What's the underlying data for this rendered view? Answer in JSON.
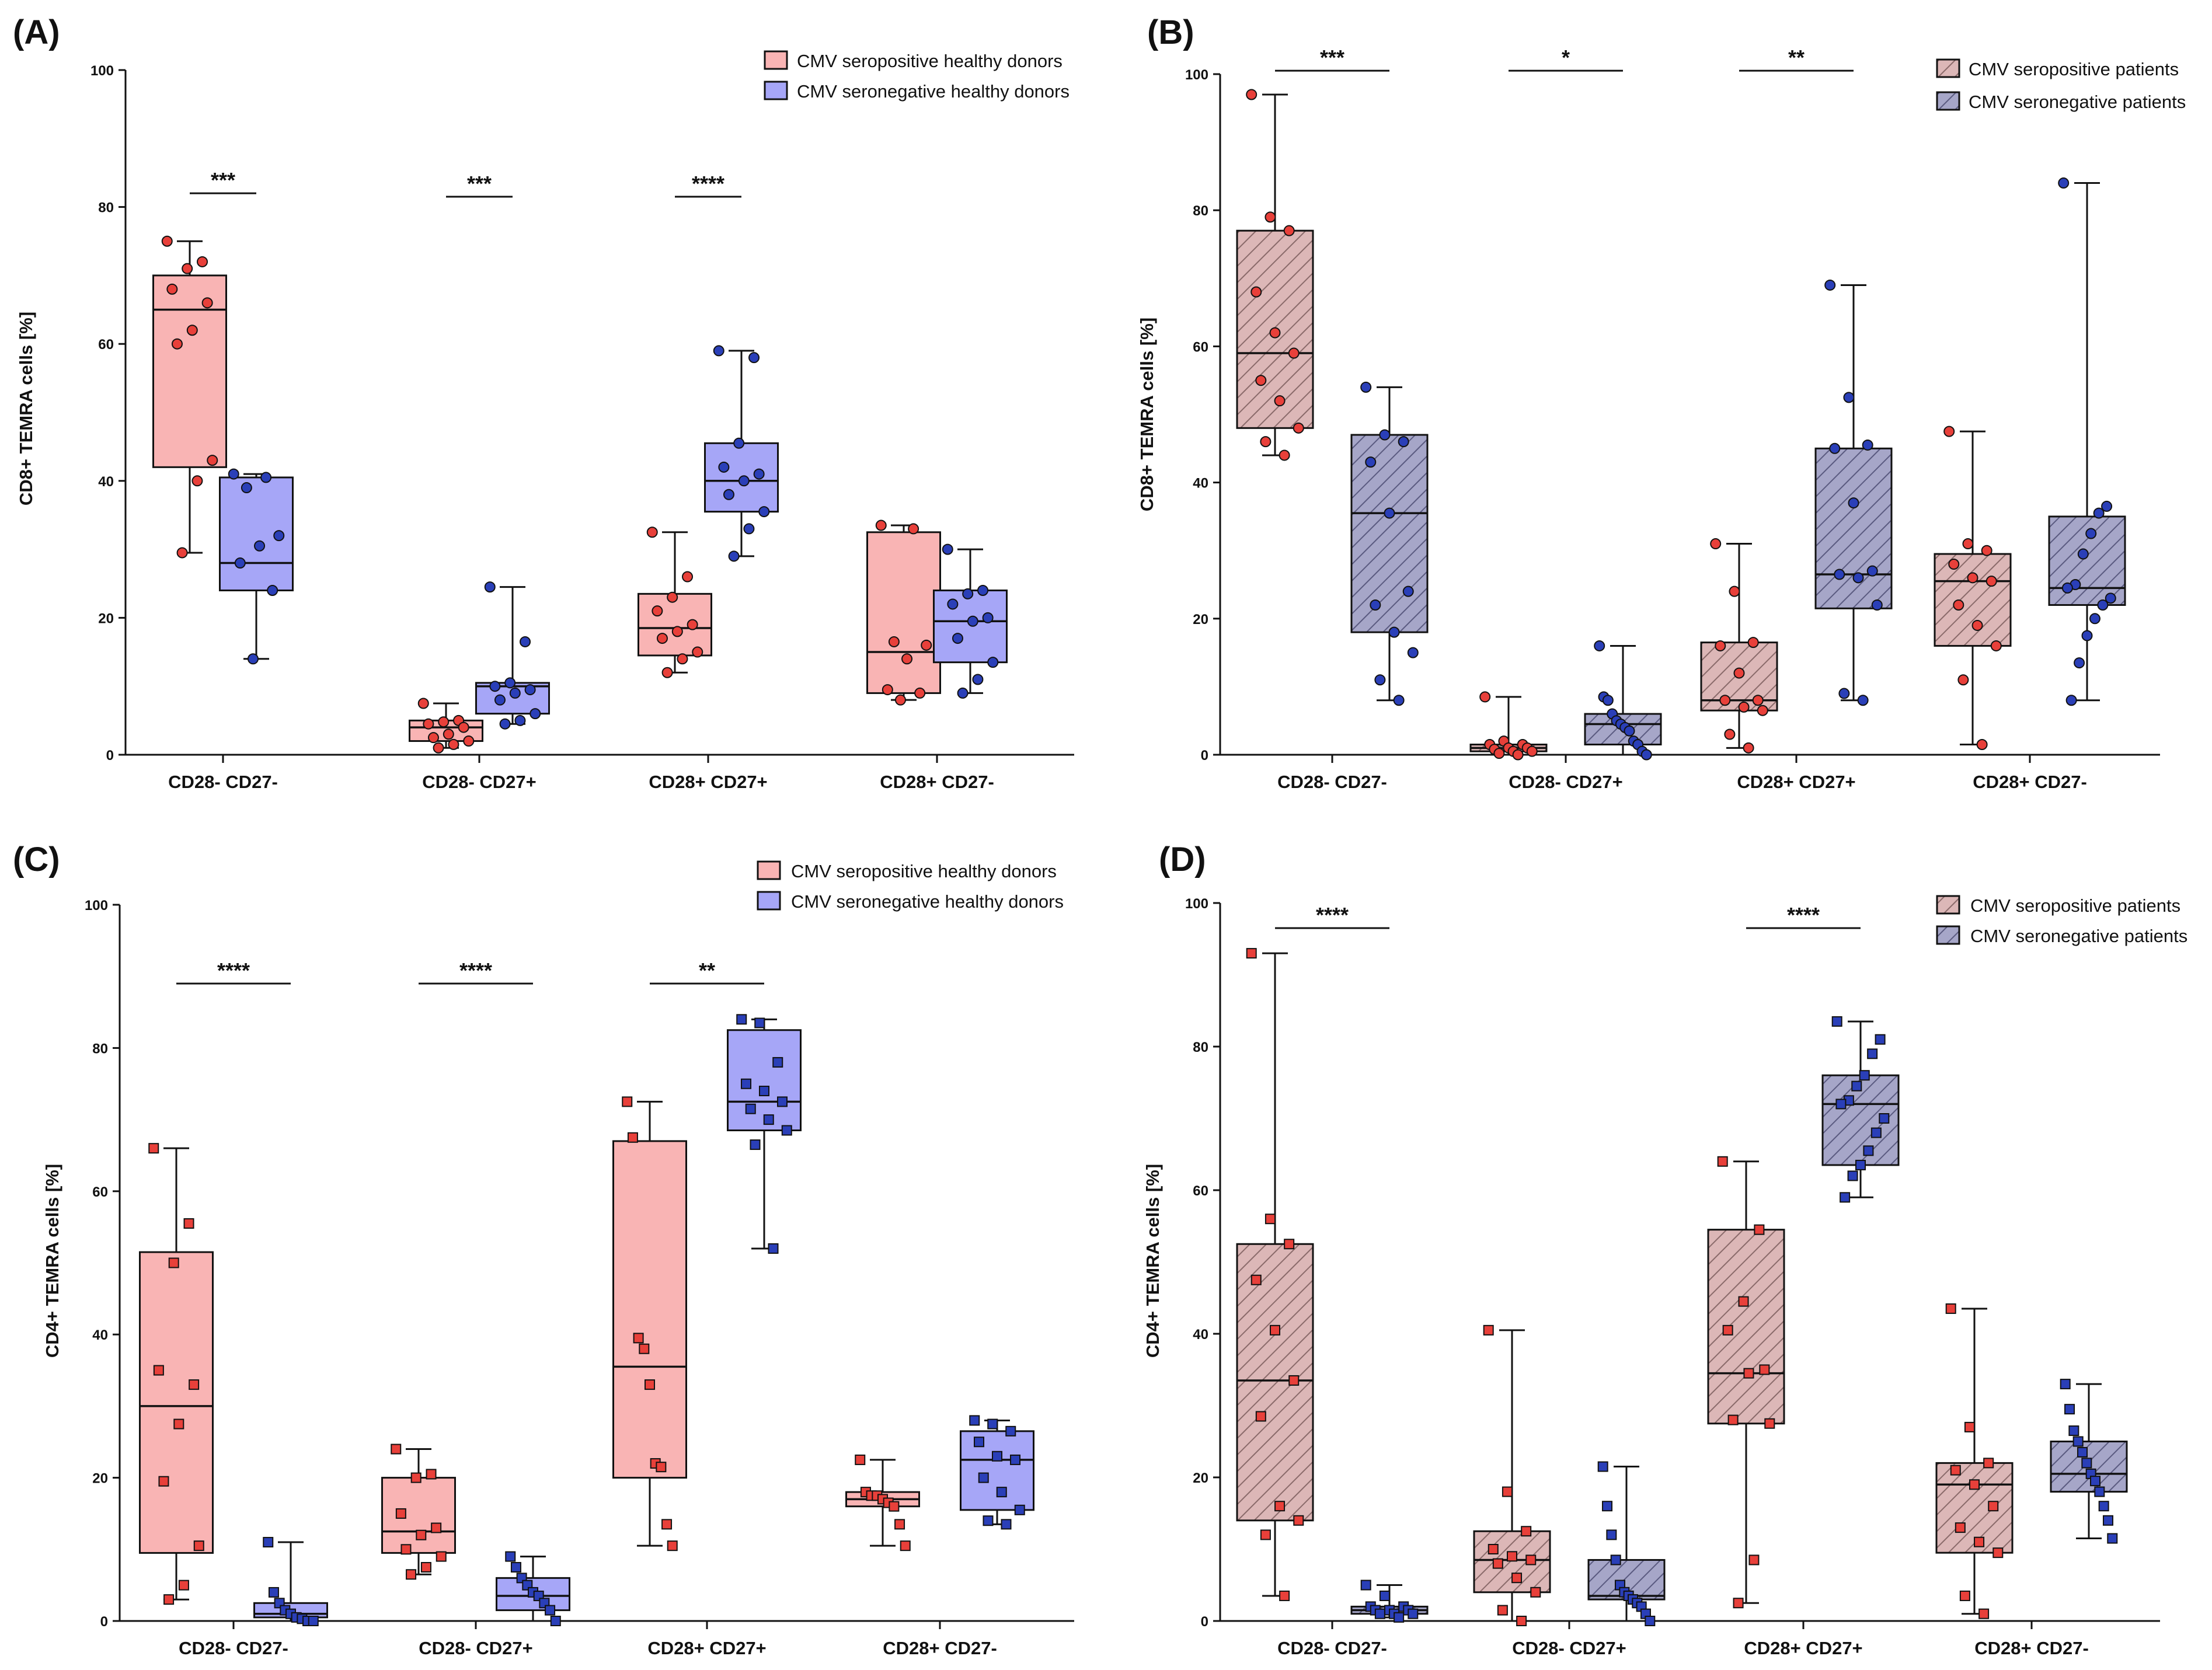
{
  "figure": {
    "colors": {
      "pos_fill": "#f9b4b4",
      "neg_fill": "#a6a6f7",
      "pos_pat_fill": "#dcb7b7",
      "neg_pat_fill": "#a6a6c8",
      "pos_point": "#e8403a",
      "neg_point": "#2a3fb8",
      "line": "#111111"
    }
  },
  "chart_data": [
    {
      "id": "A",
      "type": "box",
      "panel_label": "(A)",
      "ylabel": "CD8+ TEMRA cells [%]",
      "ylim": [
        0,
        100
      ],
      "yticks": [
        "0",
        "20",
        "40",
        "60",
        "80",
        "100"
      ],
      "categories": [
        "CD28- CD27-",
        "CD28- CD27+",
        "CD28+ CD27+",
        "CD28+ CD27-"
      ],
      "marker": "circle",
      "hatched": false,
      "series": [
        {
          "name": "CMV seropositive healthy donors",
          "color_key": "pos",
          "boxes": [
            {
              "min": 29.5,
              "q1": 42,
              "median": 65,
              "q3": 70,
              "max": 75,
              "points": [
                75,
                72,
                71,
                68,
                66,
                62,
                60,
                43,
                40,
                29.5
              ]
            },
            {
              "min": 1,
              "q1": 2,
              "median": 4,
              "q3": 5,
              "max": 7.5,
              "points": [
                7.5,
                5,
                4.8,
                4.5,
                4,
                3,
                2.5,
                2,
                1.5,
                1
              ]
            },
            {
              "min": 12,
              "q1": 14.5,
              "median": 18.5,
              "q3": 23.5,
              "max": 32.5,
              "points": [
                32.5,
                26,
                23,
                21,
                19,
                18,
                17,
                15,
                14,
                12
              ]
            },
            {
              "min": 8,
              "q1": 9,
              "median": 15,
              "q3": 32.5,
              "max": 33.5,
              "points": [
                33.5,
                33,
                16.5,
                16,
                14,
                9.5,
                9,
                8
              ]
            }
          ]
        },
        {
          "name": "CMV seronegative healthy donors",
          "color_key": "neg",
          "boxes": [
            {
              "min": 14,
              "q1": 24,
              "median": 28,
              "q3": 40.5,
              "max": 41,
              "points": [
                41,
                40.5,
                39,
                32,
                30.5,
                28,
                24,
                14
              ]
            },
            {
              "min": 4.5,
              "q1": 6,
              "median": 10,
              "q3": 10.5,
              "max": 24.5,
              "points": [
                24.5,
                16.5,
                10.5,
                10,
                9.5,
                9,
                8,
                6,
                5,
                4.5
              ]
            },
            {
              "min": 29,
              "q1": 35.5,
              "median": 40,
              "q3": 45.5,
              "max": 59,
              "points": [
                59,
                58,
                45.5,
                42,
                41,
                40,
                38,
                35.5,
                33,
                29
              ]
            },
            {
              "min": 9,
              "q1": 13.5,
              "median": 19.5,
              "q3": 24,
              "max": 30,
              "points": [
                30,
                24,
                23.5,
                22,
                20,
                19.5,
                17,
                13.5,
                11,
                9
              ]
            }
          ]
        }
      ],
      "significance": [
        {
          "category": 0,
          "label": "***",
          "y": 82
        },
        {
          "category": 1,
          "label": "***",
          "y": 81.5
        },
        {
          "category": 2,
          "label": "****",
          "y": 81.5
        }
      ],
      "legend": [
        "CMV seropositive healthy donors",
        "CMV seronegative healthy donors"
      ],
      "legend_position": "top-right"
    },
    {
      "id": "B",
      "type": "box",
      "panel_label": "(B)",
      "ylabel": "CD8+ TEMRA cells [%]",
      "ylim": [
        0,
        100
      ],
      "yticks": [
        "0",
        "20",
        "40",
        "60",
        "80",
        "100"
      ],
      "categories": [
        "CD28- CD27-",
        "CD28- CD27+",
        "CD28+ CD27+",
        "CD28+ CD27-"
      ],
      "marker": "circle",
      "hatched": true,
      "series": [
        {
          "name": "CMV seropositive patients",
          "color_key": "pos_pat",
          "boxes": [
            {
              "min": 44,
              "q1": 48,
              "median": 59,
              "q3": 77,
              "max": 97,
              "points": [
                97,
                79,
                77,
                68,
                62,
                59,
                55,
                52,
                48,
                46,
                44
              ]
            },
            {
              "min": 0,
              "q1": 0.5,
              "median": 1,
              "q3": 1.5,
              "max": 8.5,
              "points": [
                8.5,
                2,
                1.5,
                1.5,
                1,
                1,
                0.8,
                0.5,
                0.5,
                0.2,
                0
              ]
            },
            {
              "min": 1,
              "q1": 6.5,
              "median": 8,
              "q3": 16.5,
              "max": 31,
              "points": [
                31,
                24,
                16.5,
                16,
                12,
                8,
                8,
                7,
                6.5,
                3,
                1
              ]
            },
            {
              "min": 1.5,
              "q1": 16,
              "median": 25.5,
              "q3": 29.5,
              "max": 47.5,
              "points": [
                47.5,
                31,
                30,
                28,
                26,
                25.5,
                22,
                19,
                16,
                11,
                1.5
              ]
            }
          ]
        },
        {
          "name": "CMV seronegative patients",
          "color_key": "neg_pat",
          "boxes": [
            {
              "min": 8,
              "q1": 18,
              "median": 35.5,
              "q3": 47,
              "max": 54,
              "points": [
                54,
                47,
                46,
                43,
                35.5,
                24,
                22,
                18,
                15,
                11,
                8
              ]
            },
            {
              "min": 0,
              "q1": 1.5,
              "median": 4.5,
              "q3": 6,
              "max": 16,
              "points": [
                16,
                8.5,
                8,
                6,
                5,
                4.5,
                4,
                3.5,
                2,
                1.5,
                0.5,
                0
              ]
            },
            {
              "min": 8,
              "q1": 21.5,
              "median": 26.5,
              "q3": 45,
              "max": 69,
              "points": [
                69,
                52.5,
                45.5,
                45,
                37,
                27,
                26.5,
                26,
                22,
                9,
                8
              ]
            },
            {
              "min": 8,
              "q1": 22,
              "median": 24.5,
              "q3": 35,
              "max": 84,
              "points": [
                84,
                36.5,
                35.5,
                32.5,
                29.5,
                25,
                24.5,
                23,
                22,
                20,
                17.5,
                13.5,
                8
              ]
            }
          ]
        }
      ],
      "significance": [
        {
          "category": 0,
          "label": "***",
          "y": 100.5
        },
        {
          "category": 1,
          "label": "*",
          "y": 100.5
        },
        {
          "category": 2,
          "label": "**",
          "y": 100.5
        }
      ],
      "legend": [
        "CMV seropositive patients",
        "CMV seronegative patients"
      ],
      "legend_position": "top-right"
    },
    {
      "id": "C",
      "type": "box",
      "panel_label": "(C)",
      "ylabel": "CD4+ TEMRA cells [%]",
      "ylim": [
        0,
        100
      ],
      "yticks": [
        "0",
        "20",
        "40",
        "60",
        "80",
        "100"
      ],
      "categories": [
        "CD28- CD27-",
        "CD28- CD27+",
        "CD28+ CD27+",
        "CD28+ CD27-"
      ],
      "marker": "square",
      "hatched": false,
      "series": [
        {
          "name": "CMV seropositive healthy donors",
          "color_key": "pos",
          "boxes": [
            {
              "min": 3,
              "q1": 9.5,
              "median": 30,
              "q3": 51.5,
              "max": 66,
              "points": [
                66,
                55.5,
                50,
                35,
                33,
                27.5,
                19.5,
                10.5,
                5,
                3
              ]
            },
            {
              "min": 6.5,
              "q1": 9.5,
              "median": 12.5,
              "q3": 20,
              "max": 24,
              "points": [
                24,
                20.5,
                20,
                15,
                13,
                12,
                10,
                9,
                7.5,
                6.5
              ]
            },
            {
              "min": 10.5,
              "q1": 20,
              "median": 35.5,
              "q3": 67,
              "max": 72.5,
              "points": [
                72.5,
                67.5,
                39.5,
                38,
                33,
                22,
                21.5,
                13.5,
                10.5
              ]
            },
            {
              "min": 10.5,
              "q1": 16,
              "median": 17,
              "q3": 18,
              "max": 22.5,
              "points": [
                22.5,
                18,
                17.5,
                17.5,
                17,
                16.5,
                16,
                13.5,
                10.5
              ]
            }
          ]
        },
        {
          "name": "CMV seronegative healthy donors",
          "color_key": "neg",
          "boxes": [
            {
              "min": 0,
              "q1": 0.5,
              "median": 1,
              "q3": 2.5,
              "max": 11,
              "points": [
                11,
                4,
                2.5,
                1.5,
                1,
                0.5,
                0.3,
                0,
                0
              ]
            },
            {
              "min": 0,
              "q1": 1.5,
              "median": 3.5,
              "q3": 6,
              "max": 9,
              "points": [
                9,
                7.5,
                6,
                5,
                4,
                3.5,
                2.5,
                1.5,
                0
              ]
            },
            {
              "min": 52,
              "q1": 68.5,
              "median": 72.5,
              "q3": 82.5,
              "max": 84,
              "points": [
                84,
                83.5,
                78,
                75,
                74,
                72.5,
                71.5,
                70,
                68.5,
                66.5,
                52
              ]
            },
            {
              "min": 13.5,
              "q1": 15.5,
              "median": 22.5,
              "q3": 26.5,
              "max": 28,
              "points": [
                28,
                27.5,
                26.5,
                25,
                23,
                22.5,
                20,
                18,
                15.5,
                14,
                13.5
              ]
            }
          ]
        }
      ],
      "significance": [
        {
          "category": 0,
          "label": "****",
          "y": 89
        },
        {
          "category": 1,
          "label": "****",
          "y": 89
        },
        {
          "category": 2,
          "label": "**",
          "y": 89
        }
      ],
      "legend": [
        "CMV seropositive healthy donors",
        "CMV seronegative healthy donors"
      ],
      "legend_position": "top-right"
    },
    {
      "id": "D",
      "type": "box",
      "panel_label": "(D)",
      "ylabel": "CD4+ TEMRA cells [%]",
      "ylim": [
        0,
        100
      ],
      "yticks": [
        "0",
        "20",
        "40",
        "60",
        "80",
        "100"
      ],
      "categories": [
        "CD28- CD27-",
        "CD28- CD27+",
        "CD28+ CD27+",
        "CD28+ CD27-"
      ],
      "marker": "square",
      "hatched": true,
      "series": [
        {
          "name": "CMV seropositive patients",
          "color_key": "pos_pat",
          "boxes": [
            {
              "min": 3.5,
              "q1": 14,
              "median": 33.5,
              "q3": 52.5,
              "max": 93,
              "points": [
                93,
                56,
                52.5,
                47.5,
                40.5,
                33.5,
                28.5,
                16,
                14,
                12,
                3.5
              ]
            },
            {
              "min": 0,
              "q1": 4,
              "median": 8.5,
              "q3": 12.5,
              "max": 40.5,
              "points": [
                40.5,
                18,
                12.5,
                10,
                9,
                8.5,
                8,
                6,
                4,
                1.5,
                0
              ]
            },
            {
              "min": 2.5,
              "q1": 27.5,
              "median": 34.5,
              "q3": 54.5,
              "max": 64,
              "points": [
                64,
                54.5,
                44.5,
                40.5,
                35,
                34.5,
                28,
                27.5,
                8.5,
                2.5
              ]
            },
            {
              "min": 1,
              "q1": 9.5,
              "median": 19,
              "q3": 22,
              "max": 43.5,
              "points": [
                43.5,
                27,
                22,
                21,
                19,
                16,
                13,
                11,
                9.5,
                3.5,
                1
              ]
            }
          ]
        },
        {
          "name": "CMV seronegative patients",
          "color_key": "neg_pat",
          "boxes": [
            {
              "min": 0.5,
              "q1": 1,
              "median": 1.5,
              "q3": 2,
              "max": 5,
              "points": [
                5,
                3.5,
                2,
                2,
                1.5,
                1.5,
                1.5,
                1,
                1,
                1,
                0.5
              ]
            },
            {
              "min": 0,
              "q1": 3,
              "median": 3.5,
              "q3": 8.5,
              "max": 21.5,
              "points": [
                21.5,
                16,
                12,
                8.5,
                5,
                4,
                3.5,
                3,
                2.5,
                2,
                1,
                0
              ]
            },
            {
              "min": 59,
              "q1": 63.5,
              "median": 72,
              "q3": 76,
              "max": 83.5,
              "points": [
                83.5,
                81,
                79,
                76,
                74.5,
                72.5,
                72,
                70,
                68,
                65.5,
                63.5,
                62,
                59
              ]
            },
            {
              "min": 11.5,
              "q1": 18,
              "median": 20.5,
              "q3": 25,
              "max": 33,
              "points": [
                33,
                29.5,
                26.5,
                25,
                23.5,
                22,
                20.5,
                19.5,
                18,
                16,
                14,
                11.5
              ]
            }
          ]
        }
      ],
      "significance": [
        {
          "category": 0,
          "label": "****",
          "y": 96.5
        },
        {
          "category": 2,
          "label": "****",
          "y": 96.5
        }
      ],
      "legend": [
        "CMV seropositive patients",
        "CMV seronegative patients"
      ],
      "legend_position": "top-right"
    }
  ]
}
